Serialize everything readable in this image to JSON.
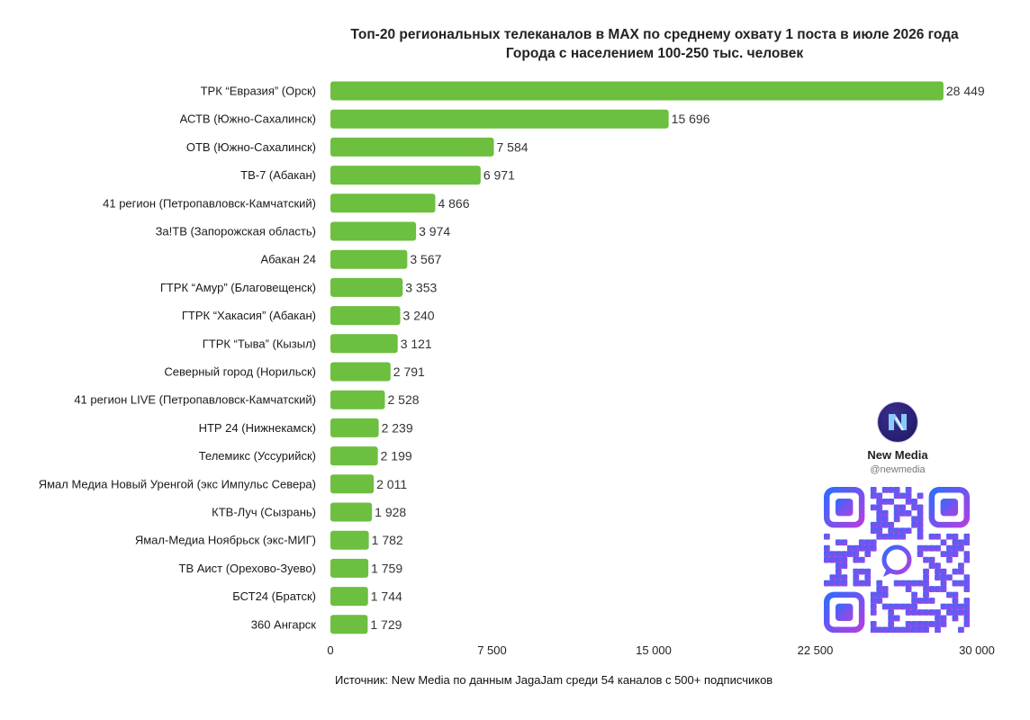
{
  "header": {
    "title_line1": "Топ-20 региональных телеканалов в MAX по среднему охвату 1 поста в июле 2026 года",
    "title_line2": "Города с населением 100-250 тыс. человек"
  },
  "footer": {
    "source": "Источник: New Media по данным JagaJam среди 54 каналов с 500+ подписчиков"
  },
  "brand": {
    "logo_text": "New\nMedia",
    "name": "New Media",
    "handle": "@newmedia",
    "qr_icon": "qr-code-icon"
  },
  "colors": {
    "bar": "#6cbf3f",
    "qr_gradient_start": "#2f6bff",
    "qr_gradient_end": "#b03fe0"
  },
  "chart_data": {
    "type": "bar",
    "orientation": "horizontal",
    "categories": [
      "ТРК “Евразия” (Орск)",
      "АСТВ (Южно-Сахалинск)",
      "ОТВ (Южно-Сахалинск)",
      "ТВ-7 (Абакан)",
      "41 регион (Петропавловск-Камчатский)",
      "За!ТВ (Запорожская область)",
      "Абакан 24",
      "ГТРК “Амур” (Благовещенск)",
      "ГТРК “Хакасия” (Абакан)",
      "ГТРК “Тыва” (Кызыл)",
      "Северный город (Норильск)",
      "41 регион LIVE (Петропавловск-Камчатский)",
      "НТР 24 (Нижнекамск)",
      "Телемикс (Уссурийск)",
      "Ямал Медиа Новый Уренгой (экс Импульс Севера)",
      "КТВ-Луч (Сызрань)",
      "Ямал-Медиа Ноябрьск (экс-МИГ)",
      "ТВ Аист (Орехово-Зуево)",
      "БСТ24 (Братск)",
      "360 Ангарск"
    ],
    "values": [
      28449,
      15696,
      7584,
      6971,
      4866,
      3974,
      3567,
      3353,
      3240,
      3121,
      2791,
      2528,
      2239,
      2199,
      2011,
      1928,
      1782,
      1759,
      1744,
      1729
    ],
    "value_labels": [
      "28 449",
      "15 696",
      "7 584",
      "6 971",
      "4 866",
      "3 974",
      "3 567",
      "3 353",
      "3 240",
      "3 121",
      "2 791",
      "2 528",
      "2 239",
      "2 199",
      "2 011",
      "1 928",
      "1 782",
      "1 759",
      "1 744",
      "1 729"
    ],
    "xlim": [
      0,
      30000
    ],
    "xticks": [
      0,
      7500,
      15000,
      22500,
      30000
    ],
    "xtick_labels": [
      "0",
      "7 500",
      "15 000",
      "22 500",
      "30 000"
    ],
    "grid": false,
    "legend": "none"
  }
}
